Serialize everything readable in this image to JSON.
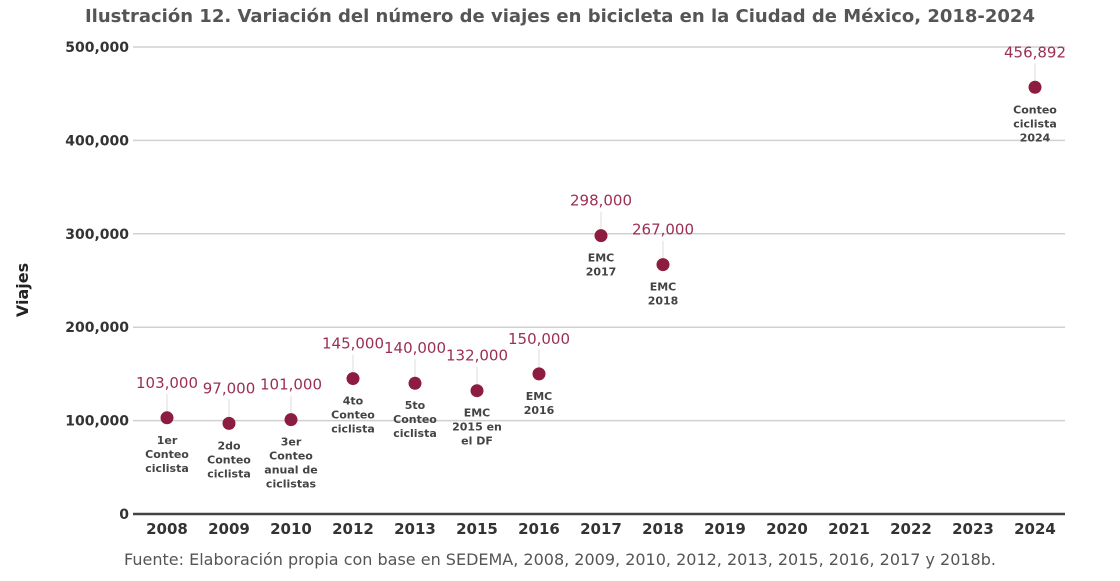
{
  "chart_data": {
    "type": "scatter",
    "title": "Ilustración 12. Variación del número de viajes en bicicleta en la Ciudad de México, 2018-2024",
    "ylabel": "Viajes",
    "xlabel": "",
    "ylim": [
      0,
      500000
    ],
    "yticks": [
      "0",
      "100,000",
      "200,000",
      "300,000",
      "400,000",
      "500,000"
    ],
    "grid": true,
    "categories": [
      "2008",
      "2009",
      "2010",
      "2012",
      "2013",
      "2015",
      "2016",
      "2017",
      "2018",
      "2019",
      "2020",
      "2021",
      "2022",
      "2023",
      "2024"
    ],
    "points": [
      {
        "x": "2008",
        "y": 103000,
        "label": "103,000",
        "note": [
          "1er",
          "Conteo",
          "ciclista"
        ]
      },
      {
        "x": "2009",
        "y": 97000,
        "label": "97,000",
        "note": [
          "2do",
          "Conteo",
          "ciclista"
        ]
      },
      {
        "x": "2010",
        "y": 101000,
        "label": "101,000",
        "note": [
          "3er",
          "Conteo",
          "anual de",
          "ciclistas"
        ]
      },
      {
        "x": "2012",
        "y": 145000,
        "label": "145,000",
        "note": [
          "4to",
          "Conteo",
          "ciclista"
        ]
      },
      {
        "x": "2013",
        "y": 140000,
        "label": "140,000",
        "note": [
          "5to",
          "Conteo",
          "ciclista"
        ]
      },
      {
        "x": "2015",
        "y": 132000,
        "label": "132,000",
        "note": [
          "EMC",
          "2015 en",
          "el DF"
        ]
      },
      {
        "x": "2016",
        "y": 150000,
        "label": "150,000",
        "note": [
          "EMC",
          "2016"
        ]
      },
      {
        "x": "2017",
        "y": 298000,
        "label": "298,000",
        "note": [
          "EMC",
          "2017"
        ]
      },
      {
        "x": "2018",
        "y": 267000,
        "label": "267,000",
        "note": [
          "EMC",
          "2018"
        ]
      },
      {
        "x": "2024",
        "y": 456892,
        "label": "456,892",
        "note": [
          "Conteo",
          "ciclista",
          "2024"
        ]
      }
    ],
    "colors": {
      "point": "#8c1d40",
      "label": "#9b2f55",
      "text": "#333333"
    },
    "source": "Fuente: Elaboración propia con base en SEDEMA, 2008, 2009, 2010, 2012, 2013, 2015, 2016, 2017 y 2018b."
  }
}
